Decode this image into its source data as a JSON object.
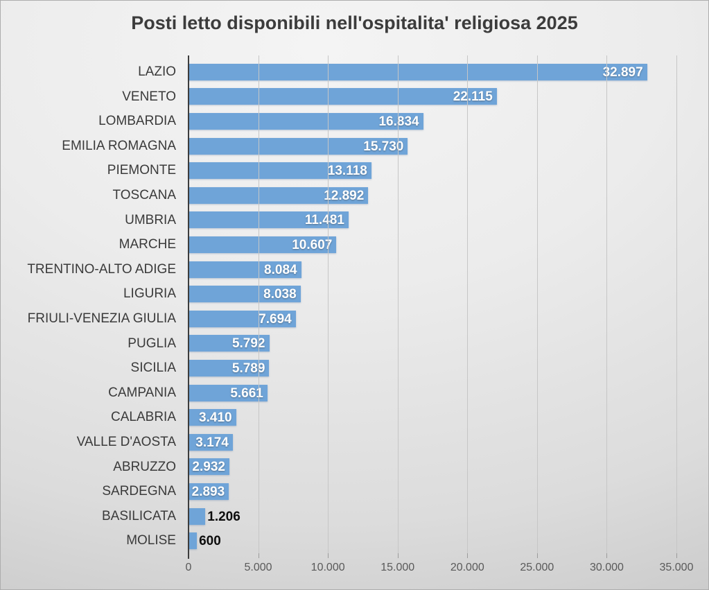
{
  "chart_data": {
    "type": "bar",
    "orientation": "horizontal",
    "title": "Posti letto disponibili nell'ospitalita' religiosa 2025",
    "categories": [
      "LAZIO",
      "VENETO",
      "LOMBARDIA",
      "EMILIA ROMAGNA",
      "PIEMONTE",
      "TOSCANA",
      "UMBRIA",
      "MARCHE",
      "TRENTINO-ALTO ADIGE",
      "LIGURIA",
      "FRIULI-VENEZIA GIULIA",
      "PUGLIA",
      "SICILIA",
      "CAMPANIA",
      "CALABRIA",
      "VALLE D'AOSTA",
      "ABRUZZO",
      "SARDEGNA",
      "BASILICATA",
      "MOLISE"
    ],
    "values": [
      32897,
      22115,
      16834,
      15730,
      13118,
      12892,
      11481,
      10607,
      8084,
      8038,
      7694,
      5792,
      5789,
      5661,
      3410,
      3174,
      2932,
      2893,
      1206,
      600
    ],
    "value_labels": [
      "32.897",
      "22.115",
      "16.834",
      "15.730",
      "13.118",
      "12.892",
      "11.481",
      "10.607",
      "8.084",
      "8.038",
      "7.694",
      "5.792",
      "5.789",
      "5.661",
      "3.410",
      "3.174",
      "2.932",
      "2.893",
      "1.206",
      "600"
    ],
    "label_placement": [
      "inside",
      "inside",
      "inside",
      "inside",
      "inside",
      "inside",
      "inside",
      "inside",
      "inside",
      "inside",
      "inside",
      "inside",
      "inside",
      "inside",
      "inside",
      "inside",
      "inside",
      "inside",
      "outside",
      "outside"
    ],
    "xlim": [
      0,
      35000
    ],
    "x_ticks": [
      {
        "value": 0,
        "label": "0"
      },
      {
        "value": 5000,
        "label": "5.000"
      },
      {
        "value": 10000,
        "label": "10.000"
      },
      {
        "value": 15000,
        "label": "15.000"
      },
      {
        "value": 20000,
        "label": "20.000"
      },
      {
        "value": 25000,
        "label": "25.000"
      },
      {
        "value": 30000,
        "label": "30.000"
      },
      {
        "value": 35000,
        "label": "35.000"
      }
    ],
    "grid": "vertical-gridlines",
    "legend_position": "none"
  },
  "style": {
    "bar_color": "#6FA4D8",
    "inside_label_color": "#ffffff",
    "outside_label_color": "#0d0d0d",
    "axis_line_color": "#3c3c3c",
    "gridline_color": "#c6c6c6",
    "tickmark_color": "#9b9b9b",
    "tick_label_color": "#595959",
    "category_label_color": "#3a3a3a",
    "title_color": "#3c3c3c"
  }
}
